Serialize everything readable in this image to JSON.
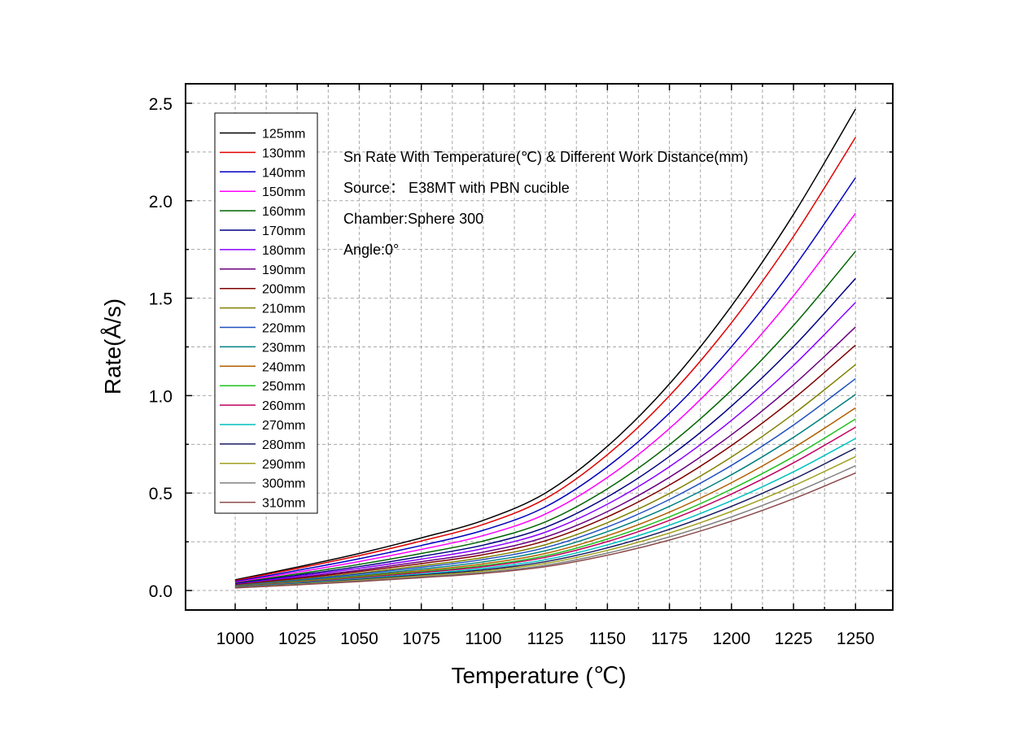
{
  "chart_data": {
    "type": "line",
    "title": "",
    "xlabel": "Temperature (℃)",
    "ylabel": "Rate(Å/s)",
    "xlim": [
      980,
      1265
    ],
    "ylim": [
      -0.1,
      2.6
    ],
    "xticks": [
      1000,
      1025,
      1050,
      1075,
      1100,
      1125,
      1150,
      1175,
      1200,
      1225,
      1250
    ],
    "yticks": [
      0.0,
      0.5,
      1.0,
      1.5,
      2.0,
      2.5
    ],
    "ytick_labels": [
      "0.0",
      "0.5",
      "1.0",
      "1.5",
      "2.0",
      "2.5"
    ],
    "grid": true,
    "legend_position": "top-left",
    "annotations": [
      "Sn Rate With Temperature(℃)  & Different Work Distance(mm)",
      "Source： E38MT with PBN cucible",
      "Chamber:Sphere 300",
      "Angle:0°"
    ],
    "x": [
      1000,
      1025,
      1050,
      1075,
      1100,
      1125,
      1150,
      1175,
      1200,
      1225,
      1250
    ],
    "series": [
      {
        "name": "125mm",
        "color": "#000000",
        "values": [
          0.055,
          0.12,
          0.19,
          0.27,
          0.36,
          0.5,
          0.74,
          1.06,
          1.46,
          1.93,
          2.47
        ]
      },
      {
        "name": "130mm",
        "color": "#e00000",
        "values": [
          0.051,
          0.113,
          0.179,
          0.254,
          0.339,
          0.471,
          0.697,
          0.999,
          1.374,
          1.817,
          2.325
        ]
      },
      {
        "name": "140mm",
        "color": "#0000c0",
        "values": [
          0.046,
          0.103,
          0.163,
          0.231,
          0.309,
          0.429,
          0.635,
          0.91,
          1.251,
          1.655,
          2.118
        ]
      },
      {
        "name": "150mm",
        "color": "#ff00ff",
        "values": [
          0.042,
          0.094,
          0.149,
          0.211,
          0.282,
          0.392,
          0.58,
          0.831,
          1.144,
          1.512,
          1.935
        ]
      },
      {
        "name": "160mm",
        "color": "#006400",
        "values": [
          0.038,
          0.085,
          0.134,
          0.19,
          0.254,
          0.352,
          0.522,
          0.748,
          1.028,
          1.36,
          1.74
        ]
      },
      {
        "name": "170mm",
        "color": "#000080",
        "values": [
          0.035,
          0.078,
          0.123,
          0.175,
          0.233,
          0.324,
          0.48,
          0.688,
          0.946,
          1.251,
          1.601
        ]
      },
      {
        "name": "180mm",
        "color": "#8b00ff",
        "values": [
          0.032,
          0.072,
          0.114,
          0.161,
          0.215,
          0.299,
          0.443,
          0.635,
          0.873,
          1.155,
          1.478
        ]
      },
      {
        "name": "190mm",
        "color": "#6a0080",
        "values": [
          0.03,
          0.066,
          0.104,
          0.148,
          0.197,
          0.274,
          0.405,
          0.581,
          0.799,
          1.056,
          1.352
        ]
      },
      {
        "name": "200mm",
        "color": "#800000",
        "values": [
          0.028,
          0.061,
          0.097,
          0.138,
          0.184,
          0.255,
          0.378,
          0.541,
          0.744,
          0.984,
          1.259
        ]
      },
      {
        "name": "210mm",
        "color": "#808000",
        "values": [
          0.026,
          0.056,
          0.089,
          0.127,
          0.169,
          0.235,
          0.348,
          0.498,
          0.685,
          0.906,
          1.159
        ]
      },
      {
        "name": "220mm",
        "color": "#1f4fbf",
        "values": [
          0.024,
          0.053,
          0.084,
          0.119,
          0.159,
          0.22,
          0.326,
          0.467,
          0.642,
          0.849,
          1.087
        ]
      },
      {
        "name": "230mm",
        "color": "#008080",
        "values": [
          0.022,
          0.049,
          0.077,
          0.11,
          0.147,
          0.204,
          0.302,
          0.432,
          0.594,
          0.786,
          1.006
        ]
      },
      {
        "name": "240mm",
        "color": "#b05f00",
        "values": [
          0.021,
          0.046,
          0.072,
          0.102,
          0.137,
          0.19,
          0.281,
          0.402,
          0.553,
          0.732,
          0.937
        ]
      },
      {
        "name": "250mm",
        "color": "#20c020",
        "values": [
          0.019,
          0.043,
          0.068,
          0.096,
          0.128,
          0.178,
          0.264,
          0.378,
          0.52,
          0.687,
          0.88
        ]
      },
      {
        "name": "260mm",
        "color": "#c00060",
        "values": [
          0.018,
          0.041,
          0.065,
          0.092,
          0.122,
          0.17,
          0.251,
          0.36,
          0.495,
          0.655,
          0.838
        ]
      },
      {
        "name": "270mm",
        "color": "#00c0c0",
        "values": [
          0.017,
          0.038,
          0.06,
          0.085,
          0.114,
          0.158,
          0.234,
          0.335,
          0.461,
          0.609,
          0.78
        ]
      },
      {
        "name": "280mm",
        "color": "#1a1a60",
        "values": [
          0.016,
          0.035,
          0.056,
          0.08,
          0.106,
          0.148,
          0.219,
          0.314,
          0.432,
          0.571,
          0.731
        ]
      },
      {
        "name": "290mm",
        "color": "#a0a020",
        "values": [
          0.015,
          0.033,
          0.053,
          0.075,
          0.1,
          0.139,
          0.206,
          0.295,
          0.406,
          0.537,
          0.687
        ]
      },
      {
        "name": "300mm",
        "color": "#808080",
        "values": [
          0.014,
          0.031,
          0.049,
          0.07,
          0.093,
          0.129,
          0.192,
          0.275,
          0.378,
          0.5,
          0.64
        ]
      },
      {
        "name": "310mm",
        "color": "#8b4a4a",
        "values": [
          0.013,
          0.029,
          0.046,
          0.066,
          0.088,
          0.122,
          0.181,
          0.259,
          0.356,
          0.471,
          0.603
        ]
      }
    ]
  }
}
